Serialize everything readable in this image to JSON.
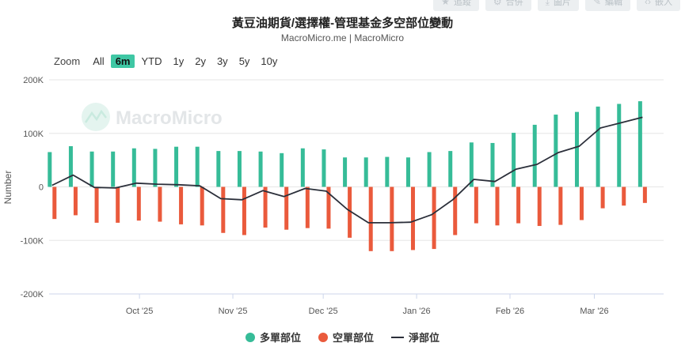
{
  "header": {
    "title": "黃豆油期貨/選擇權-管理基金多空部位變動",
    "subtitle": "MacroMicro.me | MacroMicro"
  },
  "toolbar": {
    "buttons": [
      {
        "label": "追蹤",
        "icon": "star-icon"
      },
      {
        "label": "合併",
        "icon": "gear-icon"
      },
      {
        "label": "圖片",
        "icon": "download-icon"
      },
      {
        "label": "編輯",
        "icon": "pencil-icon"
      },
      {
        "label": "嵌入",
        "icon": "code-icon"
      }
    ]
  },
  "zoom": {
    "label": "Zoom",
    "options": [
      "All",
      "6m",
      "YTD",
      "1y",
      "2y",
      "3y",
      "5y",
      "10y"
    ],
    "selected": "6m"
  },
  "watermark": "MacroMicro",
  "colors": {
    "long": "#36bc98",
    "short": "#ea5a3c",
    "net": "#2b2f3a",
    "grid": "#e6e6e6"
  },
  "chart_data": {
    "type": "bar",
    "ylabel": "Number",
    "ylim": [
      -200000,
      200000
    ],
    "yticks": [
      {
        "value": 200000,
        "label": "200K"
      },
      {
        "value": 100000,
        "label": "100K"
      },
      {
        "value": 0,
        "label": "0"
      },
      {
        "value": -100000,
        "label": "-100K"
      },
      {
        "value": -200000,
        "label": "-200K"
      }
    ],
    "xlim": [
      "2025-09-01",
      "2026-03-24"
    ],
    "xticks": [
      {
        "date": "2025-10-01",
        "label": "Oct '25"
      },
      {
        "date": "2025-11-01",
        "label": "Nov '25"
      },
      {
        "date": "2025-12-01",
        "label": "Dec '25"
      },
      {
        "date": "2026-01-01",
        "label": "Jan '26"
      },
      {
        "date": "2026-02-01",
        "label": "Feb '26"
      },
      {
        "date": "2026-03-01",
        "label": "Mar '26"
      }
    ],
    "grid": true,
    "legend_position": "bottom-center",
    "x": [
      "2025-09-02",
      "2025-09-09",
      "2025-09-16",
      "2025-09-23",
      "2025-09-30",
      "2025-10-07",
      "2025-10-14",
      "2025-10-21",
      "2025-10-28",
      "2025-11-04",
      "2025-11-11",
      "2025-11-18",
      "2025-11-25",
      "2025-12-02",
      "2025-12-09",
      "2025-12-16",
      "2025-12-23",
      "2025-12-30",
      "2026-01-06",
      "2026-01-13",
      "2026-01-20",
      "2026-01-27",
      "2026-02-03",
      "2026-02-10",
      "2026-02-17",
      "2026-02-24",
      "2026-03-03",
      "2026-03-10",
      "2026-03-17"
    ],
    "series": [
      {
        "name": "多單部位",
        "type": "bar",
        "values": [
          65000,
          76000,
          66000,
          66000,
          72000,
          71000,
          75000,
          75000,
          67000,
          67000,
          66000,
          63000,
          72000,
          70000,
          55000,
          55000,
          56000,
          55000,
          65000,
          67000,
          83000,
          82000,
          101000,
          116000,
          135000,
          140000,
          150000,
          155000,
          160000
        ]
      },
      {
        "name": "空單部位",
        "type": "bar",
        "values": [
          -60000,
          -53000,
          -67000,
          -67000,
          -63000,
          -65000,
          -70000,
          -72000,
          -86000,
          -90000,
          -76000,
          -80000,
          -77000,
          -78000,
          -95000,
          -120000,
          -120000,
          -118000,
          -116000,
          -90000,
          -68000,
          -72000,
          -68000,
          -73000,
          -71000,
          -62000,
          -40000,
          -35000,
          -30000
        ]
      },
      {
        "name": "淨部位",
        "type": "line",
        "values": [
          3000,
          22000,
          -1000,
          -2000,
          7000,
          5000,
          4000,
          2000,
          -22000,
          -24000,
          -7000,
          -18000,
          -3000,
          -8000,
          -42000,
          -67000,
          -67000,
          -66000,
          -52000,
          -24000,
          14000,
          10000,
          33000,
          42000,
          64000,
          76000,
          110000,
          120000,
          130000
        ]
      }
    ]
  }
}
